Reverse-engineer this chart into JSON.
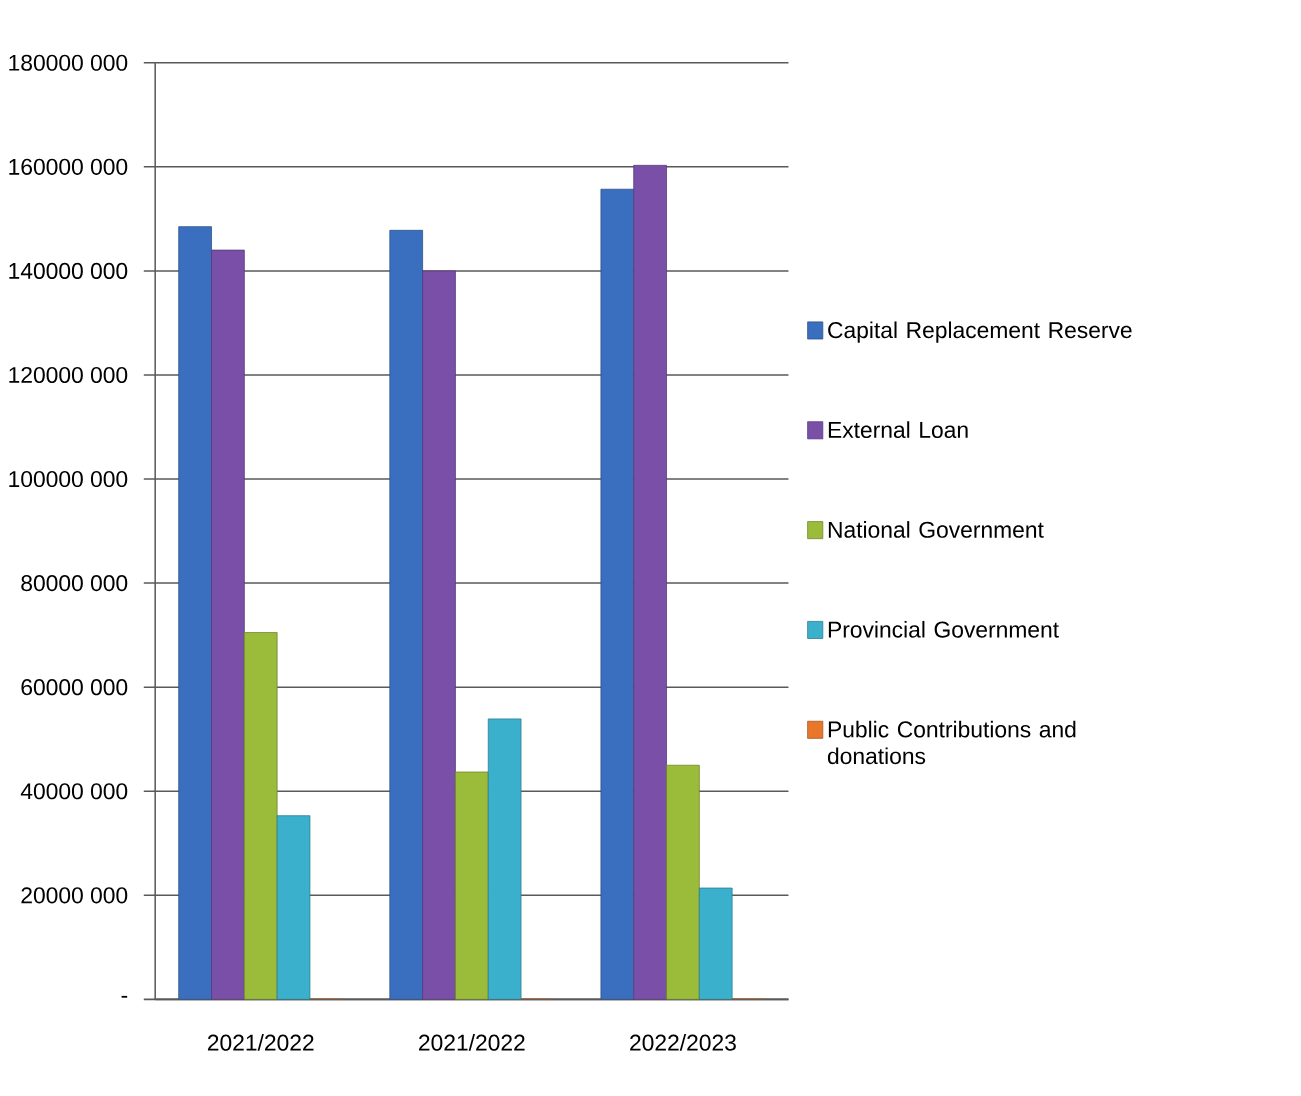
{
  "chart_data": {
    "type": "bar",
    "categories": [
      "2021/2022",
      "2021/2022",
      "2022/2023"
    ],
    "series": [
      {
        "name": "Capital Replacement Reserve",
        "color": "#3a6fc0",
        "values": [
          148500000,
          147800000,
          155700000
        ]
      },
      {
        "name": "External Loan",
        "color": "#7a4fa8",
        "values": [
          144000000,
          140000000,
          160300000
        ]
      },
      {
        "name": "National Government",
        "color": "#9bbb3a",
        "values": [
          70500000,
          43700000,
          45000000
        ]
      },
      {
        "name": "Provincial Government",
        "color": "#3bb0cc",
        "values": [
          35300000,
          53900000,
          21400000
        ]
      },
      {
        "name": "Public Contributions and donations",
        "color": "#e8772a",
        "values": [
          0,
          0,
          0
        ]
      }
    ],
    "ylim": [
      0,
      180000000
    ],
    "yticks": [
      {
        "value": 0,
        "label": "-"
      },
      {
        "value": 20000000,
        "label": "20000 000"
      },
      {
        "value": 40000000,
        "label": "40000 000"
      },
      {
        "value": 60000000,
        "label": "60000 000"
      },
      {
        "value": 80000000,
        "label": "80000 000"
      },
      {
        "value": 100000000,
        "label": "100000 000"
      },
      {
        "value": 120000000,
        "label": "120000 000"
      },
      {
        "value": 140000000,
        "label": "140000 000"
      },
      {
        "value": 160000000,
        "label": "160000 000"
      },
      {
        "value": 180000000,
        "label": "180000 000"
      }
    ],
    "grid": "y",
    "legend": "right"
  }
}
